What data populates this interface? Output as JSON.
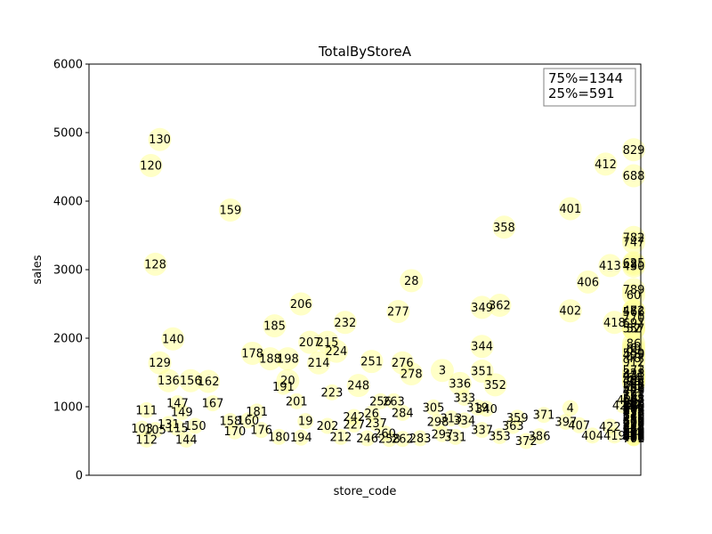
{
  "chart_data": {
    "type": "scatter",
    "title": "TotalByStoreA",
    "xlabel": "store_code",
    "ylabel": "sales",
    "ylim": [
      0,
      6000
    ],
    "yticks": [
      0,
      1000,
      2000,
      3000,
      4000,
      5000,
      6000
    ],
    "xlim": [
      0,
      300
    ],
    "grid": false,
    "marker_color": "#ffff99",
    "annotation_lines": [
      "75%=1344",
      "25%=591"
    ],
    "annotation_position": "top-right",
    "points": [
      {
        "label": "130",
        "x": 12,
        "y": 4900
      },
      {
        "label": "120",
        "x": 10,
        "y": 4520
      },
      {
        "label": "159",
        "x": 28,
        "y": 3870
      },
      {
        "label": "128",
        "x": 11,
        "y": 3080
      },
      {
        "label": "140",
        "x": 15,
        "y": 1990
      },
      {
        "label": "129",
        "x": 12,
        "y": 1640
      },
      {
        "label": "136",
        "x": 14,
        "y": 1380
      },
      {
        "label": "156",
        "x": 19,
        "y": 1380
      },
      {
        "label": "162",
        "x": 23,
        "y": 1370
      },
      {
        "label": "111",
        "x": 9,
        "y": 950
      },
      {
        "label": "147",
        "x": 16,
        "y": 1050
      },
      {
        "label": "167",
        "x": 24,
        "y": 1050
      },
      {
        "label": "149",
        "x": 17,
        "y": 920
      },
      {
        "label": "181",
        "x": 34,
        "y": 930
      },
      {
        "label": "131",
        "x": 14,
        "y": 750
      },
      {
        "label": "103",
        "x": 8,
        "y": 680
      },
      {
        "label": "112",
        "x": 9,
        "y": 520
      },
      {
        "label": "144",
        "x": 18,
        "y": 520
      },
      {
        "label": "178",
        "x": 33,
        "y": 1780
      },
      {
        "label": "185",
        "x": 38,
        "y": 2180
      },
      {
        "label": "206",
        "x": 44,
        "y": 2500
      },
      {
        "label": "188",
        "x": 37,
        "y": 1700
      },
      {
        "label": "198",
        "x": 41,
        "y": 1700
      },
      {
        "label": "20",
        "x": 41,
        "y": 1380
      },
      {
        "label": "191",
        "x": 40,
        "y": 1290
      },
      {
        "label": "201",
        "x": 43,
        "y": 1080
      },
      {
        "label": "214",
        "x": 48,
        "y": 1640
      },
      {
        "label": "207",
        "x": 46,
        "y": 1940
      },
      {
        "label": "215",
        "x": 50,
        "y": 1940
      },
      {
        "label": "224",
        "x": 52,
        "y": 1810
      },
      {
        "label": "232",
        "x": 54,
        "y": 2230
      },
      {
        "label": "223",
        "x": 51,
        "y": 1210
      },
      {
        "label": "248",
        "x": 57,
        "y": 1310
      },
      {
        "label": "251",
        "x": 60,
        "y": 1660
      },
      {
        "label": "256",
        "x": 62,
        "y": 1080
      },
      {
        "label": "263",
        "x": 65,
        "y": 1080
      },
      {
        "label": "242",
        "x": 56,
        "y": 850
      },
      {
        "label": "26",
        "x": 60,
        "y": 900
      },
      {
        "label": "284",
        "x": 67,
        "y": 910
      },
      {
        "label": "277",
        "x": 66,
        "y": 2390
      },
      {
        "label": "28",
        "x": 69,
        "y": 2840
      },
      {
        "label": "276",
        "x": 67,
        "y": 1640
      },
      {
        "label": "278",
        "x": 69,
        "y": 1480
      },
      {
        "label": "3",
        "x": 76,
        "y": 1530
      },
      {
        "label": "336",
        "x": 80,
        "y": 1340
      },
      {
        "label": "351",
        "x": 85,
        "y": 1520
      },
      {
        "label": "352",
        "x": 88,
        "y": 1320
      },
      {
        "label": "333",
        "x": 81,
        "y": 1130
      },
      {
        "label": "349",
        "x": 85,
        "y": 2450
      },
      {
        "label": "362",
        "x": 89,
        "y": 2480
      },
      {
        "label": "344",
        "x": 85,
        "y": 1880
      },
      {
        "label": "358",
        "x": 90,
        "y": 3620
      },
      {
        "label": "401",
        "x": 105,
        "y": 3890
      },
      {
        "label": "412",
        "x": 113,
        "y": 4540
      },
      {
        "label": "406",
        "x": 109,
        "y": 2820
      },
      {
        "label": "413",
        "x": 114,
        "y": 3060
      },
      {
        "label": "430",
        "x": 122,
        "y": 3050
      },
      {
        "label": "402",
        "x": 105,
        "y": 2400
      },
      {
        "label": "418",
        "x": 115,
        "y": 2230
      },
      {
        "label": "421",
        "x": 120,
        "y": 1450
      },
      {
        "label": "431",
        "x": 123,
        "y": 1460
      },
      {
        "label": "44",
        "x": 126,
        "y": 1390
      },
      {
        "label": "4",
        "x": 105,
        "y": 980
      },
      {
        "label": "426",
        "x": 118,
        "y": 1100
      },
      {
        "label": "425",
        "x": 117,
        "y": 1020
      },
      {
        "label": "440",
        "x": 126,
        "y": 1020
      },
      {
        "label": "47",
        "x": 134,
        "y": 1020
      },
      {
        "label": "435",
        "x": 124,
        "y": 920
      },
      {
        "label": "463",
        "x": 137,
        "y": 1380
      },
      {
        "label": "479",
        "x": 140,
        "y": 1230
      },
      {
        "label": "49",
        "x": 145,
        "y": 1260
      },
      {
        "label": "48",
        "x": 140,
        "y": 1710
      },
      {
        "label": "499",
        "x": 146,
        "y": 1760
      },
      {
        "label": "482",
        "x": 142,
        "y": 2400
      },
      {
        "label": "52",
        "x": 151,
        "y": 2140
      },
      {
        "label": "531",
        "x": 151,
        "y": 1270
      },
      {
        "label": "530",
        "x": 156,
        "y": 1270
      },
      {
        "label": "544",
        "x": 160,
        "y": 1340
      },
      {
        "label": "535",
        "x": 157,
        "y": 1120
      },
      {
        "label": "548",
        "x": 162,
        "y": 1110
      },
      {
        "label": "525",
        "x": 153,
        "y": 1020
      },
      {
        "label": "562",
        "x": 168,
        "y": 1290
      },
      {
        "label": "557",
        "x": 165,
        "y": 2140
      },
      {
        "label": "57",
        "x": 171,
        "y": 2140
      },
      {
        "label": "566",
        "x": 170,
        "y": 2380
      },
      {
        "label": "559",
        "x": 167,
        "y": 1780
      },
      {
        "label": "573",
        "x": 174,
        "y": 1530
      },
      {
        "label": "6",
        "x": 178,
        "y": 1860
      },
      {
        "label": "60",
        "x": 180,
        "y": 2630
      },
      {
        "label": "625",
        "x": 187,
        "y": 3100
      },
      {
        "label": "64",
        "x": 190,
        "y": 1420
      },
      {
        "label": "588",
        "x": 182,
        "y": 1060
      },
      {
        "label": "607",
        "x": 189,
        "y": 1100
      },
      {
        "label": "688",
        "x": 205,
        "y": 4370
      },
      {
        "label": "747",
        "x": 220,
        "y": 3400
      },
      {
        "label": "782",
        "x": 227,
        "y": 3470
      },
      {
        "label": "829",
        "x": 235,
        "y": 4750
      },
      {
        "label": "8",
        "x": 232,
        "y": 3080
      },
      {
        "label": "789",
        "x": 230,
        "y": 2710
      },
      {
        "label": "770",
        "x": 224,
        "y": 2300
      },
      {
        "label": "7",
        "x": 210,
        "y": 2400
      },
      {
        "label": "697",
        "x": 210,
        "y": 2220
      },
      {
        "label": "69",
        "x": 207,
        "y": 1840
      },
      {
        "label": "86",
        "x": 236,
        "y": 1920
      },
      {
        "label": "912",
        "x": 238,
        "y": 1650
      },
      {
        "label": "828",
        "x": 233,
        "y": 1490
      },
      {
        "label": "70",
        "x": 211,
        "y": 1370
      },
      {
        "label": "722",
        "x": 215,
        "y": 1210
      },
      {
        "label": "781",
        "x": 226,
        "y": 1140
      },
      {
        "label": "72",
        "x": 213,
        "y": 1030
      },
      {
        "label": "788",
        "x": 228,
        "y": 1010
      },
      {
        "label": "924",
        "x": 239,
        "y": 930
      },
      {
        "label": "671",
        "x": 203,
        "y": 790
      },
      {
        "label": "798",
        "x": 232,
        "y": 770
      },
      {
        "label": "701",
        "x": 211,
        "y": 540
      },
      {
        "label": "776",
        "x": 222,
        "y": 540
      },
      {
        "label": "84",
        "x": 235,
        "y": 620
      },
      {
        "label": "946",
        "x": 242,
        "y": 650
      }
    ],
    "cluster_labels": [
      {
        "label": "105",
        "x": 11,
        "y": 660
      },
      {
        "label": "115",
        "x": 16,
        "y": 690
      },
      {
        "label": "150",
        "x": 20,
        "y": 720
      },
      {
        "label": "158",
        "x": 28,
        "y": 790
      },
      {
        "label": "160",
        "x": 32,
        "y": 800
      },
      {
        "label": "170",
        "x": 29,
        "y": 640
      },
      {
        "label": "176",
        "x": 35,
        "y": 660
      },
      {
        "label": "19",
        "x": 45,
        "y": 790
      },
      {
        "label": "180",
        "x": 39,
        "y": 560
      },
      {
        "label": "194",
        "x": 44,
        "y": 550
      },
      {
        "label": "202",
        "x": 50,
        "y": 720
      },
      {
        "label": "212",
        "x": 53,
        "y": 560
      },
      {
        "label": "227",
        "x": 56,
        "y": 740
      },
      {
        "label": "237",
        "x": 61,
        "y": 760
      },
      {
        "label": "246",
        "x": 59,
        "y": 540
      },
      {
        "label": "260",
        "x": 63,
        "y": 610
      },
      {
        "label": "258",
        "x": 64,
        "y": 530
      },
      {
        "label": "262",
        "x": 67,
        "y": 530
      },
      {
        "label": "283",
        "x": 71,
        "y": 540
      },
      {
        "label": "297",
        "x": 76,
        "y": 600
      },
      {
        "label": "298",
        "x": 75,
        "y": 780
      },
      {
        "label": "305",
        "x": 74,
        "y": 990
      },
      {
        "label": "313",
        "x": 78,
        "y": 830
      },
      {
        "label": "319",
        "x": 84,
        "y": 990
      },
      {
        "label": "331",
        "x": 79,
        "y": 560
      },
      {
        "label": "334",
        "x": 81,
        "y": 800
      },
      {
        "label": "337",
        "x": 85,
        "y": 660
      },
      {
        "label": "340",
        "x": 86,
        "y": 970
      },
      {
        "label": "353",
        "x": 89,
        "y": 570
      },
      {
        "label": "359",
        "x": 93,
        "y": 840
      },
      {
        "label": "363",
        "x": 92,
        "y": 720
      },
      {
        "label": "371",
        "x": 99,
        "y": 880
      },
      {
        "label": "372",
        "x": 95,
        "y": 500
      },
      {
        "label": "386",
        "x": 98,
        "y": 570
      },
      {
        "label": "397",
        "x": 104,
        "y": 780
      },
      {
        "label": "407",
        "x": 107,
        "y": 730
      },
      {
        "label": "404",
        "x": 110,
        "y": 580
      },
      {
        "label": "419",
        "x": 115,
        "y": 580
      },
      {
        "label": "422",
        "x": 114,
        "y": 710
      },
      {
        "label": "441",
        "x": 125,
        "y": 550
      },
      {
        "label": "445",
        "x": 128,
        "y": 700
      },
      {
        "label": "450",
        "x": 127,
        "y": 820
      },
      {
        "label": "460",
        "x": 131,
        "y": 780
      },
      {
        "label": "466",
        "x": 140,
        "y": 960
      },
      {
        "label": "473",
        "x": 134,
        "y": 610
      },
      {
        "label": "486",
        "x": 141,
        "y": 570
      },
      {
        "label": "497",
        "x": 145,
        "y": 560
      },
      {
        "label": "502",
        "x": 144,
        "y": 620
      },
      {
        "label": "512",
        "x": 147,
        "y": 880
      },
      {
        "label": "515",
        "x": 152,
        "y": 580
      },
      {
        "label": "522",
        "x": 156,
        "y": 580
      },
      {
        "label": "531",
        "x": 153,
        "y": 780
      },
      {
        "label": "543",
        "x": 158,
        "y": 660
      },
      {
        "label": "553",
        "x": 162,
        "y": 750
      },
      {
        "label": "558",
        "x": 166,
        "y": 580
      },
      {
        "label": "569",
        "x": 171,
        "y": 570
      },
      {
        "label": "570",
        "x": 173,
        "y": 870
      },
      {
        "label": "575",
        "x": 176,
        "y": 770
      },
      {
        "label": "578",
        "x": 177,
        "y": 650
      },
      {
        "label": "603",
        "x": 181,
        "y": 780
      },
      {
        "label": "612",
        "x": 186,
        "y": 790
      },
      {
        "label": "645",
        "x": 184,
        "y": 870
      },
      {
        "label": "650",
        "x": 192,
        "y": 1010
      },
      {
        "label": "659",
        "x": 196,
        "y": 580
      },
      {
        "label": "666",
        "x": 198,
        "y": 960
      },
      {
        "label": "677",
        "x": 200,
        "y": 940
      },
      {
        "label": "698",
        "x": 203,
        "y": 580
      },
      {
        "label": "706",
        "x": 205,
        "y": 1020
      },
      {
        "label": "718",
        "x": 214,
        "y": 640
      },
      {
        "label": "729",
        "x": 217,
        "y": 650
      },
      {
        "label": "741",
        "x": 220,
        "y": 580
      },
      {
        "label": "758",
        "x": 225,
        "y": 590
      },
      {
        "label": "820",
        "x": 231,
        "y": 620
      },
      {
        "label": "840",
        "x": 236,
        "y": 640
      }
    ]
  }
}
